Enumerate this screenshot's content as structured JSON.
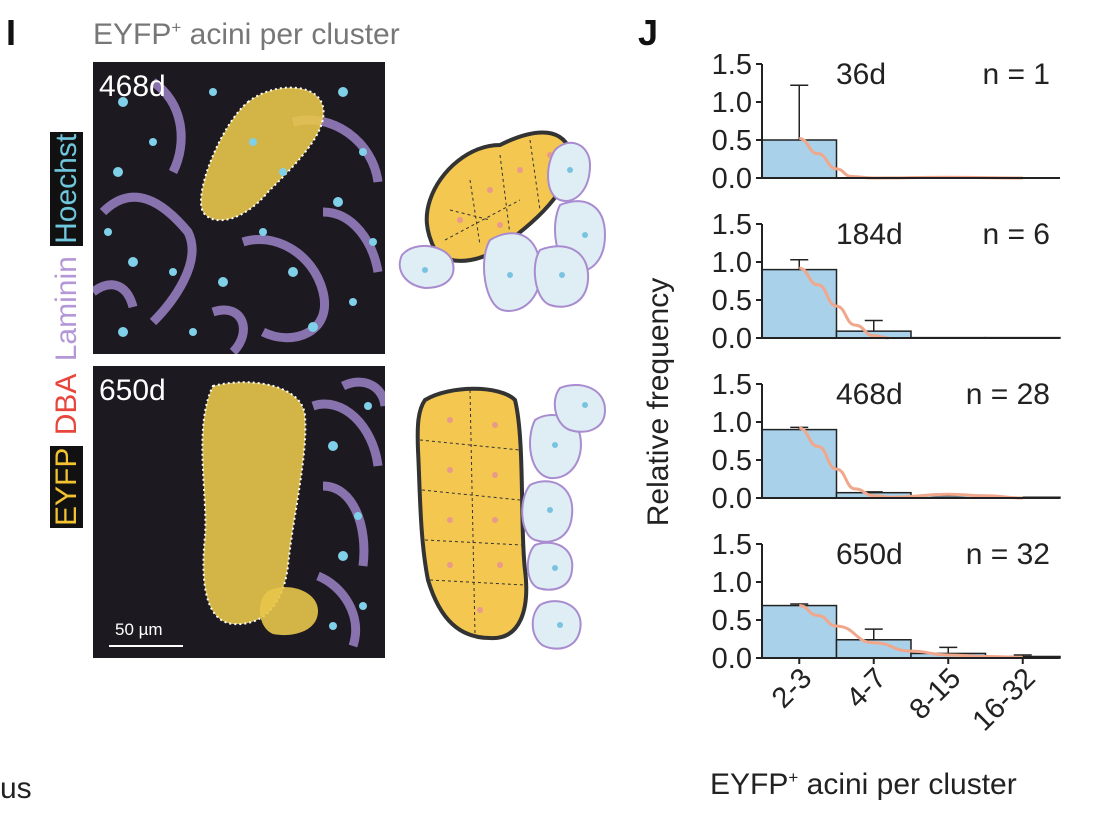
{
  "panel_i": {
    "letter": "I",
    "title_main": "EYFP",
    "title_sup": "+",
    "title_rest": " acini per cluster",
    "stain_labels": [
      {
        "text": "EYFP",
        "color": "#f2c230",
        "bg": "#111111"
      },
      {
        "text": "DBA",
        "color": "#e8453c",
        "bg": ""
      },
      {
        "text": "Laminin",
        "color": "#b497d6",
        "bg": ""
      },
      {
        "text": "Hoechst",
        "color": "#6fc6dd",
        "bg": "#111111"
      }
    ],
    "images": [
      {
        "age": "468d"
      },
      {
        "age": "650d"
      }
    ],
    "scale_label": "50 µm",
    "cut_text": "us"
  },
  "panel_j": {
    "letter": "J",
    "xlabel_main": "EYFP",
    "xlabel_sup": "+",
    "xlabel_rest": " acini per cluster"
  },
  "chart_data": {
    "type": "bar",
    "categories": [
      "2-3",
      "4-7",
      "8-15",
      "16-32"
    ],
    "ylabel": "Relative frequency",
    "ylim": [
      0,
      1.5
    ],
    "yticks": [
      "0.0",
      "0.5",
      "1.0",
      "1.5"
    ],
    "bar_color": "#a9d2ea",
    "fit_color": "#f0a78b",
    "subplots": [
      {
        "age": "36d",
        "n": "n = 1",
        "values": [
          0.5,
          0,
          0,
          0
        ],
        "errors": [
          0.72,
          0,
          0,
          0
        ],
        "fit": [
          [
            0.5,
            0.52
          ],
          [
            0.75,
            0.32
          ],
          [
            1.0,
            0.12
          ],
          [
            1.2,
            0.02
          ],
          [
            1.5,
            0.0
          ],
          [
            2.5,
            0.01
          ],
          [
            3.5,
            0.0
          ]
        ]
      },
      {
        "age": "184d",
        "n": "n = 6",
        "values": [
          0.9,
          0.09,
          0.005,
          0.005
        ],
        "errors": [
          0.13,
          0.14,
          0,
          0
        ],
        "fit": [
          [
            0.5,
            0.92
          ],
          [
            0.75,
            0.7
          ],
          [
            1.0,
            0.42
          ],
          [
            1.25,
            0.17
          ],
          [
            1.5,
            0.03
          ],
          [
            1.7,
            0.0
          ]
        ]
      },
      {
        "age": "468d",
        "n": "n = 28",
        "values": [
          0.9,
          0.07,
          0.03,
          0.01
        ],
        "errors": [
          0.03,
          0.01,
          0.02,
          0
        ],
        "fit": [
          [
            0.5,
            0.92
          ],
          [
            0.75,
            0.68
          ],
          [
            1.0,
            0.38
          ],
          [
            1.25,
            0.12
          ],
          [
            1.5,
            0.03
          ],
          [
            1.75,
            0.01
          ],
          [
            2.5,
            0.05
          ],
          [
            3.0,
            0.03
          ],
          [
            3.5,
            0.0
          ]
        ]
      },
      {
        "age": "650d",
        "n": "n = 32",
        "values": [
          0.69,
          0.24,
          0.06,
          0.02
        ],
        "errors": [
          0.02,
          0.14,
          0.08,
          0.02
        ],
        "fit": [
          [
            0.5,
            0.69
          ],
          [
            0.75,
            0.56
          ],
          [
            1.0,
            0.42
          ],
          [
            1.5,
            0.2
          ],
          [
            2.0,
            0.09
          ],
          [
            2.5,
            0.04
          ],
          [
            3.0,
            0.02
          ],
          [
            3.5,
            0.01
          ]
        ]
      }
    ]
  }
}
